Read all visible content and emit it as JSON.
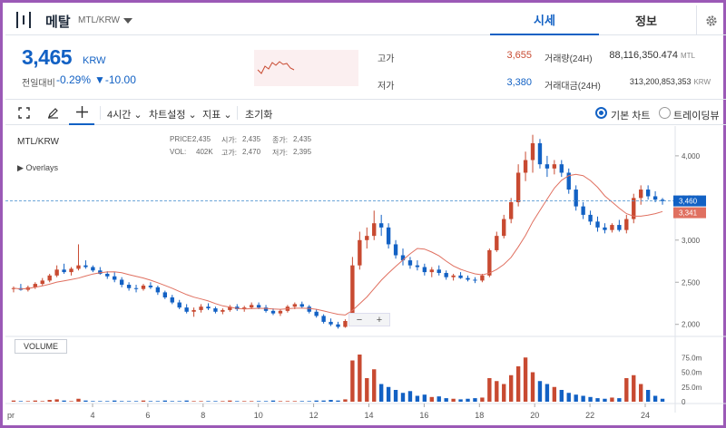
{
  "header": {
    "coin_name": "메탈",
    "pair": "MTL/KRW",
    "tabs": [
      {
        "label": "시세"
      },
      {
        "label": "정보"
      }
    ]
  },
  "price": {
    "current": "3,465",
    "unit": "KRW",
    "change_label": "전일대비",
    "change_pct": "-0.29%",
    "change_val": "▼-10.00"
  },
  "stats": {
    "high_label": "고가",
    "high": "3,655",
    "low_label": "저가",
    "low": "3,380",
    "volume_label": "거래량(24H)",
    "volume": "88,116,350.474",
    "volume_unit": "MTL",
    "amount_label": "거래대금(24H)",
    "amount": "313,200,853,353",
    "amount_unit": "KRW",
    "colors": {
      "up": "#c84a31",
      "down": "#1261c4"
    }
  },
  "toolbar": {
    "interval": "4시간",
    "chart_settings": "차트설정",
    "indicators": "지표",
    "reset": "초기화",
    "basic_chart": "기본 차트",
    "tradingview": "트레이딩뷰"
  },
  "chart": {
    "pair": "MTL/KRW",
    "overlays": "Overlays",
    "volume_label": "VOLUME",
    "ohlc_price_label": "PRICE:",
    "ohlc_price": "2,435",
    "ohlc_open_label": "시가:",
    "ohlc_open": "2,435",
    "ohlc_close_label": "종가:",
    "ohlc_close": "2,435",
    "ohlc_vol_label": "VOL:",
    "ohlc_vol": "402K",
    "ohlc_high_label": "고가:",
    "ohlc_high": "2,470",
    "ohlc_low_label": "저가:",
    "ohlc_low": "2,395",
    "current_tag": "3,460",
    "ma_tag": "3,341",
    "zoom_minus": "−",
    "zoom_plus": "+"
  },
  "chart_data": {
    "type": "candlestick",
    "y_ticks": [
      "4,000",
      "3,500",
      "3,000",
      "2,500",
      "2,000"
    ],
    "ylim": [
      1900,
      4300
    ],
    "vol_ticks": [
      "75.0m",
      "50.0m",
      "25.0m",
      "0"
    ],
    "x_ticks": [
      "pr",
      "4",
      "6",
      "8",
      "10",
      "12",
      "14",
      "16",
      "18",
      "20",
      "22",
      "24"
    ],
    "ma_color": "#e07060",
    "candles": [
      [
        2420,
        2450,
        2380,
        2430
      ],
      [
        2430,
        2480,
        2400,
        2410
      ],
      [
        2410,
        2460,
        2390,
        2440
      ],
      [
        2440,
        2500,
        2420,
        2480
      ],
      [
        2480,
        2550,
        2460,
        2520
      ],
      [
        2520,
        2600,
        2500,
        2580
      ],
      [
        2580,
        2700,
        2560,
        2650
      ],
      [
        2650,
        2720,
        2600,
        2620
      ],
      [
        2620,
        2680,
        2580,
        2660
      ],
      [
        2660,
        2950,
        2640,
        2700
      ],
      [
        2700,
        2760,
        2660,
        2680
      ],
      [
        2680,
        2700,
        2620,
        2640
      ],
      [
        2640,
        2680,
        2590,
        2600
      ],
      [
        2600,
        2630,
        2540,
        2570
      ],
      [
        2570,
        2620,
        2500,
        2530
      ],
      [
        2530,
        2560,
        2440,
        2470
      ],
      [
        2470,
        2500,
        2400,
        2430
      ],
      [
        2430,
        2470,
        2380,
        2420
      ],
      [
        2420,
        2480,
        2400,
        2460
      ],
      [
        2460,
        2500,
        2420,
        2440
      ],
      [
        2440,
        2460,
        2350,
        2380
      ],
      [
        2380,
        2400,
        2300,
        2320
      ],
      [
        2320,
        2350,
        2240,
        2260
      ],
      [
        2260,
        2290,
        2180,
        2200
      ],
      [
        2200,
        2240,
        2130,
        2150
      ],
      [
        2150,
        2200,
        2090,
        2170
      ],
      [
        2170,
        2240,
        2140,
        2210
      ],
      [
        2210,
        2250,
        2170,
        2190
      ],
      [
        2190,
        2210,
        2130,
        2150
      ],
      [
        2150,
        2190,
        2120,
        2170
      ],
      [
        2170,
        2230,
        2150,
        2210
      ],
      [
        2210,
        2240,
        2160,
        2180
      ],
      [
        2180,
        2220,
        2150,
        2200
      ],
      [
        2200,
        2260,
        2180,
        2230
      ],
      [
        2230,
        2260,
        2180,
        2200
      ],
      [
        2200,
        2230,
        2140,
        2160
      ],
      [
        2160,
        2190,
        2110,
        2130
      ],
      [
        2130,
        2180,
        2100,
        2160
      ],
      [
        2160,
        2230,
        2140,
        2210
      ],
      [
        2210,
        2260,
        2180,
        2240
      ],
      [
        2240,
        2270,
        2190,
        2210
      ],
      [
        2210,
        2230,
        2130,
        2150
      ],
      [
        2150,
        2180,
        2080,
        2100
      ],
      [
        2100,
        2120,
        2010,
        2030
      ],
      [
        2030,
        2070,
        1980,
        2000
      ],
      [
        2000,
        2030,
        1950,
        1970
      ],
      [
        1970,
        2060,
        1960,
        2040
      ],
      [
        2040,
        2800,
        2030,
        2700
      ],
      [
        2700,
        3100,
        2650,
        3000
      ],
      [
        3000,
        3150,
        2900,
        3050
      ],
      [
        3050,
        3350,
        3000,
        3200
      ],
      [
        3200,
        3300,
        3050,
        3150
      ],
      [
        3150,
        3200,
        2900,
        2950
      ],
      [
        2950,
        3000,
        2780,
        2820
      ],
      [
        2820,
        2900,
        2700,
        2760
      ],
      [
        2760,
        2800,
        2660,
        2700
      ],
      [
        2700,
        2760,
        2640,
        2680
      ],
      [
        2680,
        2720,
        2580,
        2620
      ],
      [
        2620,
        2680,
        2560,
        2650
      ],
      [
        2650,
        2700,
        2580,
        2610
      ],
      [
        2610,
        2640,
        2530,
        2560
      ],
      [
        2560,
        2600,
        2520,
        2580
      ],
      [
        2580,
        2620,
        2540,
        2550
      ],
      [
        2550,
        2580,
        2510,
        2530
      ],
      [
        2530,
        2560,
        2490,
        2520
      ],
      [
        2520,
        2600,
        2500,
        2580
      ],
      [
        2580,
        2900,
        2560,
        2880
      ],
      [
        2880,
        3100,
        2860,
        3050
      ],
      [
        3050,
        3300,
        3020,
        3250
      ],
      [
        3250,
        3500,
        3200,
        3450
      ],
      [
        3450,
        3900,
        3400,
        3800
      ],
      [
        3800,
        4050,
        3700,
        3950
      ],
      [
        3950,
        4250,
        3800,
        4150
      ],
      [
        4150,
        4200,
        3850,
        3900
      ],
      [
        3900,
        4000,
        3750,
        3850
      ],
      [
        3850,
        3950,
        3780,
        3900
      ],
      [
        3900,
        3950,
        3750,
        3800
      ],
      [
        3800,
        3850,
        3550,
        3600
      ],
      [
        3600,
        3650,
        3350,
        3400
      ],
      [
        3400,
        3450,
        3250,
        3300
      ],
      [
        3300,
        3350,
        3180,
        3220
      ],
      [
        3220,
        3280,
        3100,
        3150
      ],
      [
        3150,
        3200,
        3080,
        3120
      ],
      [
        3120,
        3200,
        3090,
        3180
      ],
      [
        3180,
        3240,
        3100,
        3120
      ],
      [
        3120,
        3300,
        3080,
        3250
      ],
      [
        3250,
        3550,
        3200,
        3500
      ],
      [
        3500,
        3650,
        3420,
        3600
      ],
      [
        3600,
        3650,
        3480,
        3520
      ],
      [
        3520,
        3580,
        3450,
        3480
      ],
      [
        3480,
        3500,
        3420,
        3465
      ]
    ],
    "volumes": [
      2,
      1,
      1,
      2,
      1,
      3,
      4,
      2,
      1,
      5,
      2,
      1,
      1,
      1,
      2,
      1,
      1,
      1,
      2,
      1,
      1,
      2,
      1,
      1,
      2,
      1,
      1,
      1,
      1,
      1,
      2,
      1,
      1,
      1,
      1,
      1,
      2,
      1,
      1,
      1,
      1,
      1,
      2,
      2,
      3,
      2,
      4,
      70,
      80,
      40,
      55,
      30,
      25,
      20,
      15,
      18,
      10,
      12,
      8,
      9,
      6,
      5,
      4,
      5,
      6,
      7,
      40,
      35,
      30,
      45,
      60,
      75,
      50,
      35,
      30,
      25,
      20,
      15,
      12,
      10,
      8,
      6,
      5,
      7,
      6,
      40,
      45,
      30,
      20,
      10,
      5
    ]
  }
}
